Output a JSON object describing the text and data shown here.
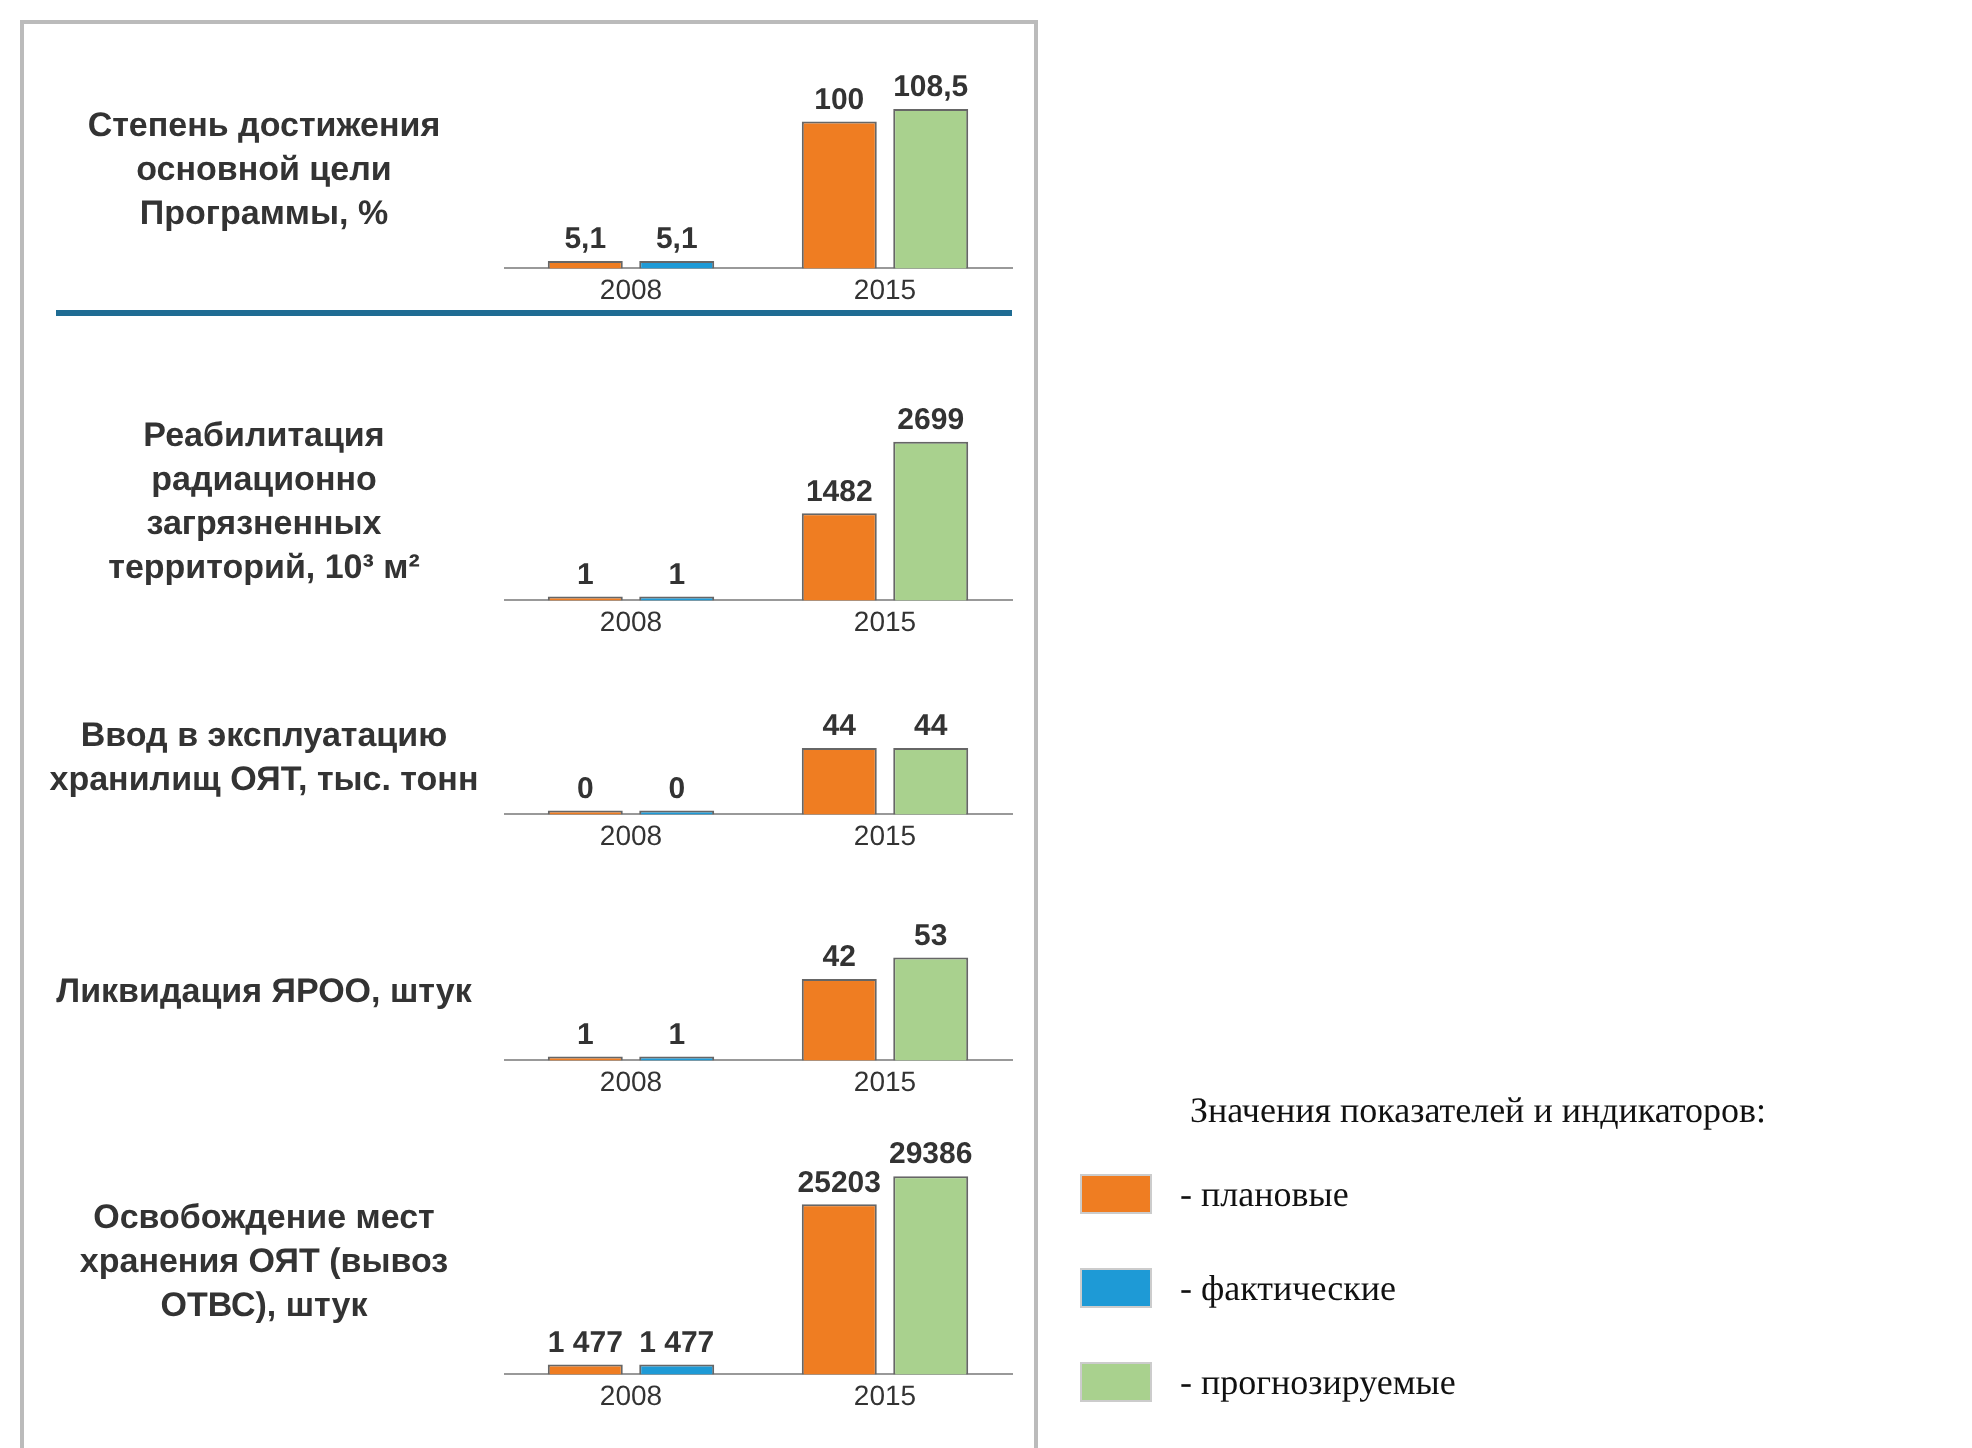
{
  "chart_data": [
    {
      "type": "bar",
      "title": "Степень достижения основной цели Программы, %",
      "categories": [
        "2008",
        "2015"
      ],
      "tick_labels": "x",
      "series": [
        {
          "color": "#ef7d22",
          "values": [
            5.1,
            100
          ],
          "value_labels": [
            "5,1",
            "100"
          ]
        },
        {
          "color": "#1e9ad6",
          "values": [
            5.1,
            null
          ],
          "value_labels": [
            "5,1",
            null
          ]
        },
        {
          "color": "#a9d18e",
          "values": [
            null,
            108.5
          ],
          "value_labels": [
            null,
            "108,5"
          ]
        }
      ]
    },
    {
      "type": "bar",
      "title": "Реабилитация радиационно загрязненных территорий, 10³ м²",
      "categories": [
        "2008",
        "2015"
      ],
      "tick_labels": "x",
      "series": [
        {
          "color": "#ef7d22",
          "values": [
            1,
            1482
          ],
          "value_labels": [
            "1",
            "1482"
          ]
        },
        {
          "color": "#1e9ad6",
          "values": [
            1,
            null
          ],
          "value_labels": [
            "1",
            null
          ]
        },
        {
          "color": "#a9d18e",
          "values": [
            null,
            2699
          ],
          "value_labels": [
            null,
            "2699"
          ]
        }
      ]
    },
    {
      "type": "bar",
      "title": "Ввод в эксплуатацию хранилищ ОЯТ, тыс. тонн",
      "categories": [
        "2008",
        "2015"
      ],
      "tick_labels": "x",
      "series": [
        {
          "color": "#ef7d22",
          "values": [
            0,
            44
          ],
          "value_labels": [
            "0",
            "44"
          ]
        },
        {
          "color": "#1e9ad6",
          "values": [
            0,
            null
          ],
          "value_labels": [
            "0",
            null
          ]
        },
        {
          "color": "#a9d18e",
          "values": [
            null,
            44
          ],
          "value_labels": [
            null,
            "44"
          ]
        }
      ]
    },
    {
      "type": "bar",
      "title": "Ликвидация ЯРОО, штук",
      "categories": [
        "2008",
        "2015"
      ],
      "tick_labels": "x",
      "series": [
        {
          "color": "#ef7d22",
          "values": [
            1,
            42
          ],
          "value_labels": [
            "1",
            "42"
          ]
        },
        {
          "color": "#1e9ad6",
          "values": [
            1,
            null
          ],
          "value_labels": [
            "1",
            null
          ]
        },
        {
          "color": "#a9d18e",
          "values": [
            null,
            53
          ],
          "value_labels": [
            null,
            "53"
          ]
        }
      ]
    },
    {
      "type": "bar",
      "title": "Освобождение мест хранения ОЯТ (вывоз ОТВС), штук",
      "categories": [
        "2008",
        "2015"
      ],
      "tick_labels": "x",
      "legend": "right",
      "legend_title": "Значения показателей и индикаторов:",
      "series": [
        {
          "name": "- плановые",
          "color": "#ef7d22",
          "values": [
            1477,
            25203
          ],
          "value_labels": [
            "1 477",
            "25203"
          ]
        },
        {
          "name": "- фактические",
          "color": "#1e9ad6",
          "values": [
            1477,
            null
          ],
          "value_labels": [
            "1 477",
            null
          ]
        },
        {
          "name": "- прогнозируемые",
          "color": "#a9d18e",
          "values": [
            null,
            29386
          ],
          "value_labels": [
            null,
            "29386"
          ]
        }
      ]
    }
  ]
}
